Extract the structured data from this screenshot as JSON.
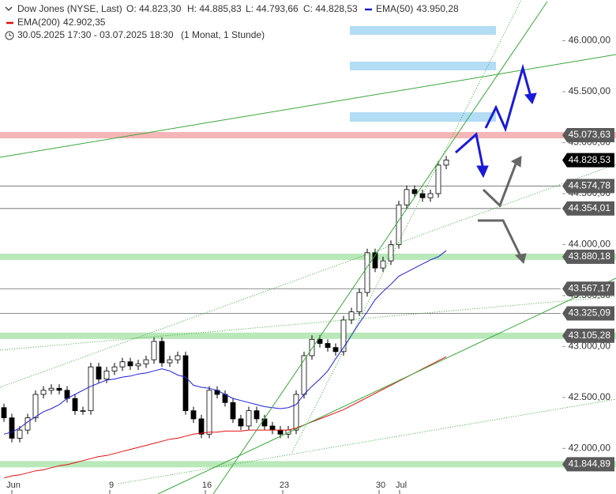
{
  "chart_data": {
    "type": "candlestick",
    "title": "Dow Jones (NYSE, Last)",
    "ohlc_labels": [
      "O: 44.823,30",
      "H: 44.885,83",
      "L: 44.793,66",
      "C: 44.828,53"
    ],
    "period": "30.05.2025 17:30 - 03.07.2025 18:30",
    "interval": "(1 Monat, 1 Stunde)",
    "open": [
      42400,
      42300,
      42100,
      42180,
      42300,
      42530,
      42570,
      42590,
      42570,
      42490,
      42370,
      42370,
      42800,
      42680,
      42760,
      42800,
      42850,
      42810,
      42830,
      42870,
      43050,
      42840,
      42870,
      42910,
      42370,
      42290,
      42140,
      42570,
      42530,
      42450,
      42290,
      42220,
      42370,
      42290,
      42220,
      42180,
      42140,
      42180,
      42530,
      42910,
      43070,
      43030,
      42990,
      42950,
      43260,
      43340,
      43530,
      43920,
      43770,
      43840,
      44000,
      44390,
      44540,
      44500,
      44460,
      44500,
      44780
    ],
    "high": [
      42440,
      42340,
      42220,
      42340,
      42570,
      42610,
      42630,
      42630,
      42610,
      42530,
      42410,
      42840,
      42840,
      42800,
      42840,
      42890,
      42890,
      42870,
      42910,
      43090,
      43090,
      42910,
      42950,
      42950,
      42410,
      42330,
      42610,
      42610,
      42570,
      42490,
      42330,
      42410,
      42410,
      42330,
      42260,
      42220,
      42220,
      42570,
      42950,
      43110,
      43110,
      43070,
      43030,
      43300,
      43380,
      43570,
      43960,
      43960,
      43880,
      44040,
      44430,
      44580,
      44580,
      44540,
      44540,
      44820,
      44870
    ],
    "low": [
      42260,
      42060,
      42060,
      42140,
      42260,
      42490,
      42530,
      42530,
      42450,
      42330,
      42330,
      42330,
      42640,
      42640,
      42720,
      42760,
      42770,
      42770,
      42790,
      42830,
      42800,
      42800,
      42830,
      42330,
      42250,
      42100,
      42100,
      42490,
      42410,
      42250,
      42180,
      42180,
      42250,
      42180,
      42140,
      42100,
      42100,
      42140,
      42490,
      42870,
      42990,
      42950,
      42910,
      42910,
      43220,
      43300,
      43490,
      43730,
      43730,
      43800,
      43960,
      44350,
      44460,
      44420,
      44420,
      44460,
      44740
    ],
    "close": [
      42300,
      42100,
      42180,
      42300,
      42530,
      42570,
      42590,
      42570,
      42490,
      42370,
      42370,
      42800,
      42680,
      42760,
      42800,
      42850,
      42810,
      42830,
      42870,
      43050,
      42840,
      42870,
      42910,
      42370,
      42290,
      42140,
      42570,
      42530,
      42450,
      42290,
      42220,
      42370,
      42290,
      42220,
      42180,
      42140,
      42180,
      42530,
      42910,
      43070,
      43030,
      42990,
      42950,
      43260,
      43340,
      43530,
      43920,
      43770,
      43840,
      44000,
      44390,
      44540,
      44500,
      44460,
      44500,
      44780,
      44830
    ],
    "series": [
      {
        "name": "EMA(50)",
        "value_label": "43.950,28",
        "color": "#1f1fd6",
        "values": [
          42140,
          42160,
          42200,
          42260,
          42310,
          42360,
          42390,
          42430,
          42490,
          42530,
          42570,
          42610,
          42640,
          42670,
          42680,
          42700,
          42710,
          42730,
          42740,
          42760,
          42780,
          42760,
          42720,
          42700,
          42620,
          42600,
          42590,
          42570,
          42530,
          42490,
          42470,
          42450,
          42430,
          42410,
          42400,
          42390,
          42400,
          42430,
          42530,
          42610,
          42680,
          42760,
          42880,
          42990,
          43110,
          43230,
          43340,
          43460,
          43540,
          43610,
          43690,
          43730,
          43770,
          43810,
          43850,
          43880,
          43940
        ]
      },
      {
        "name": "EMA(200)",
        "value_label": "42.902,35",
        "color": "#e01010",
        "values": [
          41710,
          41730,
          41740,
          41760,
          41780,
          41790,
          41810,
          41830,
          41840,
          41860,
          41880,
          41900,
          41920,
          41930,
          41950,
          41970,
          41990,
          42010,
          42030,
          42050,
          42070,
          42090,
          42100,
          42120,
          42140,
          42150,
          42160,
          42160,
          42170,
          42170,
          42170,
          42180,
          42180,
          42180,
          42180,
          42180,
          42180,
          42200,
          42230,
          42260,
          42290,
          42320,
          42350,
          42380,
          42420,
          42460,
          42500,
          42540,
          42580,
          42620,
          42660,
          42700,
          42740,
          42780,
          42820,
          42860,
          42900
        ]
      }
    ],
    "xlim": [
      -0.5,
      70.5
    ],
    "xticks": [
      {
        "value": 1.0,
        "label": "Jun"
      },
      {
        "value": 13.4,
        "label": "9"
      },
      {
        "value": 25.5,
        "label": "16"
      },
      {
        "value": 35.3,
        "label": "23"
      },
      {
        "value": 47.5,
        "label": "30"
      },
      {
        "value": 50.1,
        "label": "Jul"
      }
    ],
    "ylim": [
      41700,
      46400
    ],
    "yticks": [
      {
        "value": 42000,
        "label": "42.000,00"
      },
      {
        "value": 42500,
        "label": "42.500,00"
      },
      {
        "value": 43000,
        "label": "43.000,00"
      },
      {
        "value": 43500,
        "label": "43.500,00"
      },
      {
        "value": 44000,
        "label": "44.000,00"
      },
      {
        "value": 44500,
        "label": "44.500,00"
      },
      {
        "value": 45000,
        "label": "45.000,00"
      },
      {
        "value": 45500,
        "label": "45.500,00"
      },
      {
        "value": 46000,
        "label": "46.000,00"
      }
    ],
    "levels": [
      {
        "value": 45073.63,
        "label": "45.073,63",
        "color": "#f4b6b6",
        "band": true
      },
      {
        "value": 44574.78,
        "label": "44.574,78",
        "color": "#666666",
        "band": false
      },
      {
        "value": 44354.01,
        "label": "44.354,01",
        "color": "#666666",
        "band": false
      },
      {
        "value": 43880.18,
        "label": "43.880,18",
        "color": "#b9e8b9",
        "band": true
      },
      {
        "value": 43567.17,
        "label": "43.567,17",
        "color": "#666666",
        "band": false
      },
      {
        "value": 43325.09,
        "label": "43.325,09",
        "color": "#666666",
        "band": false
      },
      {
        "value": 43105.28,
        "label": "43.105,28",
        "color": "#b9e8b9",
        "band": true
      },
      {
        "value": 41844.89,
        "label": "41.844,89",
        "color": "#b9e8b9",
        "band": true
      }
    ],
    "last": {
      "value": 44828.53,
      "label": "44.828,53"
    }
  }
}
